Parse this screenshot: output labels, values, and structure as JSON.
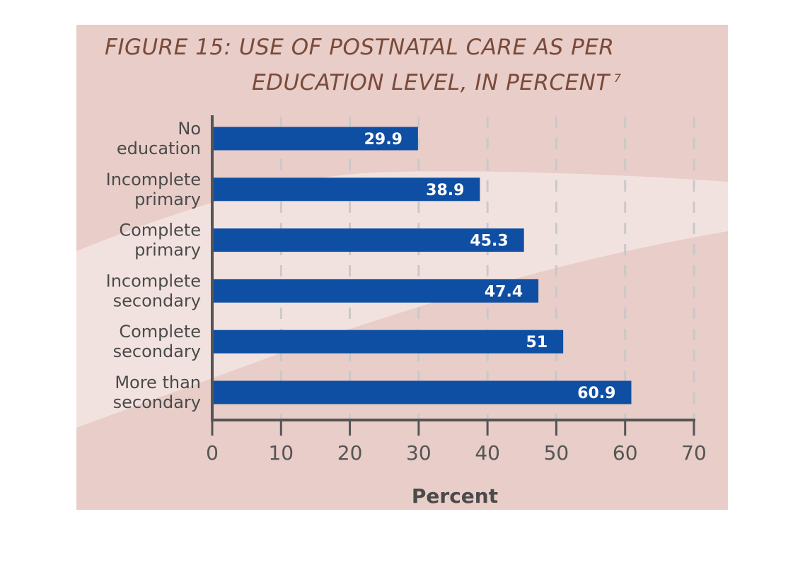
{
  "title_line_1": "FIGURE 15: USE OF POSTNATAL CARE AS PER",
  "title_line_2": "EDUCATION LEVEL, IN PERCENT",
  "title_footnote": "7",
  "colors": {
    "background": "#e8cdc8",
    "band": "#f2e2df",
    "bar": "#0f4fa3",
    "axis": "#555555",
    "title": "#7a4a3a"
  },
  "chart_data": {
    "type": "bar",
    "orientation": "horizontal",
    "title": "FIGURE 15: USE OF POSTNATAL CARE AS PER EDUCATION LEVEL, IN PERCENT",
    "categories": [
      [
        "No",
        "education"
      ],
      [
        "Incomplete",
        "primary"
      ],
      [
        "Complete",
        "primary"
      ],
      [
        "Incomplete",
        "secondary"
      ],
      [
        "Complete",
        "secondary"
      ],
      [
        "More than",
        "secondary"
      ]
    ],
    "values": [
      29.9,
      38.9,
      45.3,
      47.4,
      51,
      60.9
    ],
    "value_labels": [
      "29.9",
      "38.9",
      "45.3",
      "47.4",
      "51",
      "60.9"
    ],
    "xlabel": "Percent",
    "ylabel": "",
    "xlim": [
      0,
      70
    ],
    "xticks": [
      0,
      10,
      20,
      30,
      40,
      50,
      60,
      70
    ],
    "grid": "vertical dashed"
  }
}
